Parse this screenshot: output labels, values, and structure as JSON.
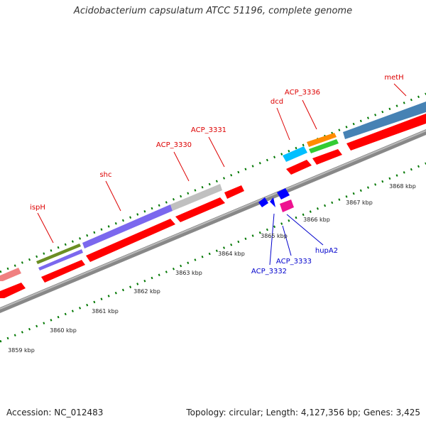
{
  "title": "Acidobacterium capsulatum ATCC 51196, complete genome",
  "footer": {
    "accession": "Accession: NC_012483",
    "topology": "Topology: circular; Length: 4,127,356 bp; Genes: 3,425"
  },
  "colors": {
    "forward_label": "#dd0000",
    "reverse_label": "#0000cc",
    "cds": "#ff0000",
    "backbone": "#888888",
    "ticks": "#007700"
  },
  "scale_labels": [
    "3859 kbp",
    "3860 kbp",
    "3861 kbp",
    "3862 kbp",
    "3863 kbp",
    "3864 kbp",
    "3865 kbp",
    "3866 kbp",
    "3867 kbp",
    "3868 kbp"
  ],
  "forward_genes": [
    {
      "name": "ispH",
      "color": "#6b8e23",
      "color2": "#7b68ee"
    },
    {
      "name": "shc",
      "color": "#7b68ee"
    },
    {
      "name": "ACP_3330",
      "color": "#c0c0c0"
    },
    {
      "name": "ACP_3331",
      "color": "#ff0000"
    },
    {
      "name": "dcd",
      "color": "#00bfff"
    },
    {
      "name": "ACP_3336",
      "color": "#ff8c00",
      "color2": "#33cc33"
    },
    {
      "name": "metH",
      "color": "#4682b4"
    }
  ],
  "reverse_genes": [
    {
      "name": "ACP_3332",
      "color": "#0000ff"
    },
    {
      "name": "ACP_3333",
      "color": "#0000ff"
    },
    {
      "name": "hupA2",
      "color": "#ee1290"
    }
  ]
}
